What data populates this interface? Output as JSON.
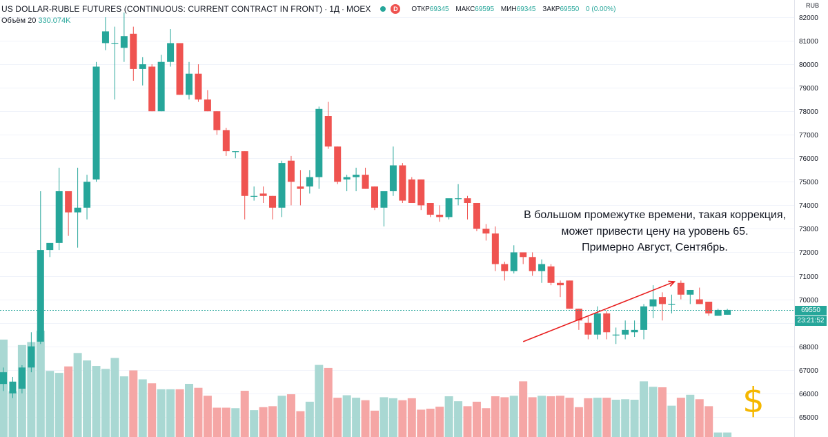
{
  "header": {
    "title": "US DOLLAR-RUBLE FUTURES (CONTINUOUS: CURRENT CONTRACT IN FRONT)",
    "interval": "1Д",
    "exchange": "MOEX",
    "badge": "D",
    "open_label": "ОТКР",
    "open_value": "69345",
    "high_label": "МАКС",
    "high_value": "69595",
    "low_label": "МИН",
    "low_value": "69345",
    "close_label": "ЗАКР",
    "close_value": "69550",
    "change_value": "0 (0.00%)"
  },
  "volume_legend": {
    "label": "Объём 20",
    "value": "330.074K"
  },
  "axis": {
    "currency": "RUB",
    "last_price": "69550",
    "countdown": "23:21:52"
  },
  "annotation": {
    "lines": [
      "В большом промежутке времени, такая коррекция,",
      "может привести цену на уровень 65.",
      "Примерно Август, Сентябрь."
    ]
  },
  "decoration": {
    "dollar_symbol": "$"
  },
  "colors": {
    "up": "#26a69a",
    "down": "#ef5350",
    "vol_up": "#a9d8d3",
    "vol_down": "#f5a6a5",
    "trend": "#e81e1e"
  },
  "chart_data": {
    "type": "candlestick",
    "y_ticks": [
      82000,
      81000,
      80000,
      79000,
      78000,
      77000,
      76000,
      75000,
      74000,
      73000,
      72000,
      71000,
      70000,
      69000,
      68000,
      67000,
      66000,
      65000
    ],
    "last_price": 69550,
    "trend_line": {
      "from": [
        56,
        68200
      ],
      "to": [
        72,
        70750
      ]
    },
    "candles": [
      {
        "o": 66400,
        "h": 67100,
        "l": 66100,
        "c": 66900
      },
      {
        "o": 66000,
        "h": 66700,
        "l": 65800,
        "c": 66500
      },
      {
        "o": 66200,
        "h": 67200,
        "l": 66000,
        "c": 67100
      },
      {
        "o": 67100,
        "h": 68600,
        "l": 66900,
        "c": 68000
      },
      {
        "o": 68200,
        "h": 74600,
        "l": 68100,
        "c": 72100
      },
      {
        "o": 72100,
        "h": 72300,
        "l": 71800,
        "c": 72400
      },
      {
        "o": 72400,
        "h": 75600,
        "l": 72100,
        "c": 74600
      },
      {
        "o": 74600,
        "h": 74600,
        "l": 72700,
        "c": 73700
      },
      {
        "o": 73700,
        "h": 75600,
        "l": 72200,
        "c": 73900
      },
      {
        "o": 73900,
        "h": 75300,
        "l": 73400,
        "c": 75000
      },
      {
        "o": 75100,
        "h": 80100,
        "l": 75000,
        "c": 79900
      },
      {
        "o": 80900,
        "h": 82000,
        "l": 80600,
        "c": 81400
      },
      {
        "o": 80900,
        "h": 81600,
        "l": 78500,
        "c": 80900
      },
      {
        "o": 80700,
        "h": 82200,
        "l": 80100,
        "c": 81200
      },
      {
        "o": 81300,
        "h": 81600,
        "l": 79300,
        "c": 79800
      },
      {
        "o": 79800,
        "h": 80300,
        "l": 79100,
        "c": 80000
      },
      {
        "o": 79900,
        "h": 80000,
        "l": 78000,
        "c": 78000
      },
      {
        "o": 78000,
        "h": 80400,
        "l": 78000,
        "c": 80100
      },
      {
        "o": 80100,
        "h": 81500,
        "l": 79900,
        "c": 80900
      },
      {
        "o": 80900,
        "h": 80900,
        "l": 78700,
        "c": 78700
      },
      {
        "o": 78700,
        "h": 80100,
        "l": 78500,
        "c": 79600
      },
      {
        "o": 79600,
        "h": 80000,
        "l": 78400,
        "c": 78500
      },
      {
        "o": 78500,
        "h": 78900,
        "l": 78000,
        "c": 78000
      },
      {
        "o": 78000,
        "h": 78000,
        "l": 77000,
        "c": 77200
      },
      {
        "o": 77200,
        "h": 77300,
        "l": 76100,
        "c": 76300
      },
      {
        "o": 76300,
        "h": 76300,
        "l": 76000,
        "c": 76300
      },
      {
        "o": 76300,
        "h": 76300,
        "l": 73400,
        "c": 74400
      },
      {
        "o": 74400,
        "h": 74800,
        "l": 74200,
        "c": 74400
      },
      {
        "o": 74500,
        "h": 74800,
        "l": 74100,
        "c": 74400
      },
      {
        "o": 74400,
        "h": 74400,
        "l": 73400,
        "c": 73900
      },
      {
        "o": 73900,
        "h": 75900,
        "l": 73500,
        "c": 75800
      },
      {
        "o": 75900,
        "h": 76100,
        "l": 74000,
        "c": 75000
      },
      {
        "o": 74800,
        "h": 75500,
        "l": 74000,
        "c": 74700
      },
      {
        "o": 74800,
        "h": 75500,
        "l": 74500,
        "c": 75200
      },
      {
        "o": 75200,
        "h": 78200,
        "l": 74700,
        "c": 78100
      },
      {
        "o": 77800,
        "h": 78400,
        "l": 76400,
        "c": 76500
      },
      {
        "o": 76500,
        "h": 76500,
        "l": 74900,
        "c": 75000
      },
      {
        "o": 75100,
        "h": 75300,
        "l": 74600,
        "c": 75200
      },
      {
        "o": 75200,
        "h": 75600,
        "l": 74600,
        "c": 75300
      },
      {
        "o": 75300,
        "h": 75600,
        "l": 74700,
        "c": 74700
      },
      {
        "o": 74800,
        "h": 74800,
        "l": 73800,
        "c": 73900
      },
      {
        "o": 73900,
        "h": 74500,
        "l": 73100,
        "c": 74600
      },
      {
        "o": 74600,
        "h": 76500,
        "l": 74400,
        "c": 75700
      },
      {
        "o": 75700,
        "h": 75800,
        "l": 74100,
        "c": 74200
      },
      {
        "o": 75100,
        "h": 75200,
        "l": 74100,
        "c": 74100
      },
      {
        "o": 75100,
        "h": 75100,
        "l": 73800,
        "c": 74000
      },
      {
        "o": 74100,
        "h": 74100,
        "l": 73500,
        "c": 73600
      },
      {
        "o": 73600,
        "h": 74000,
        "l": 73300,
        "c": 73500
      },
      {
        "o": 73500,
        "h": 74200,
        "l": 73400,
        "c": 74300
      },
      {
        "o": 74300,
        "h": 74900,
        "l": 74000,
        "c": 74300
      },
      {
        "o": 74300,
        "h": 74400,
        "l": 73400,
        "c": 74100
      },
      {
        "o": 74100,
        "h": 74100,
        "l": 72900,
        "c": 73000
      },
      {
        "o": 73000,
        "h": 73200,
        "l": 72500,
        "c": 72800
      },
      {
        "o": 72800,
        "h": 73100,
        "l": 71200,
        "c": 71500
      },
      {
        "o": 71500,
        "h": 71600,
        "l": 70800,
        "c": 71200
      },
      {
        "o": 71200,
        "h": 72300,
        "l": 71100,
        "c": 72000
      },
      {
        "o": 72000,
        "h": 72000,
        "l": 71500,
        "c": 71800
      },
      {
        "o": 71800,
        "h": 72000,
        "l": 71000,
        "c": 71200
      },
      {
        "o": 71200,
        "h": 71700,
        "l": 70700,
        "c": 71500
      },
      {
        "o": 71400,
        "h": 71500,
        "l": 70600,
        "c": 70700
      },
      {
        "o": 70700,
        "h": 70800,
        "l": 70100,
        "c": 70600
      },
      {
        "o": 70800,
        "h": 70800,
        "l": 69600,
        "c": 69600
      },
      {
        "o": 69600,
        "h": 69600,
        "l": 68700,
        "c": 69100
      },
      {
        "o": 69000,
        "h": 69300,
        "l": 68300,
        "c": 68500
      },
      {
        "o": 68500,
        "h": 69700,
        "l": 68300,
        "c": 69400
      },
      {
        "o": 69400,
        "h": 69500,
        "l": 68300,
        "c": 68600
      },
      {
        "o": 68500,
        "h": 68800,
        "l": 68100,
        "c": 68500
      },
      {
        "o": 68500,
        "h": 69100,
        "l": 68300,
        "c": 68700
      },
      {
        "o": 68600,
        "h": 69100,
        "l": 68400,
        "c": 68700
      },
      {
        "o": 68700,
        "h": 69800,
        "l": 68300,
        "c": 69700
      },
      {
        "o": 69700,
        "h": 70600,
        "l": 69200,
        "c": 70000
      },
      {
        "o": 70100,
        "h": 70300,
        "l": 69100,
        "c": 69800
      },
      {
        "o": 69800,
        "h": 70200,
        "l": 69400,
        "c": 69800
      },
      {
        "o": 70700,
        "h": 70800,
        "l": 70000,
        "c": 70200
      },
      {
        "o": 70200,
        "h": 70400,
        "l": 69800,
        "c": 70400
      },
      {
        "o": 70000,
        "h": 70500,
        "l": 69800,
        "c": 69800
      },
      {
        "o": 69900,
        "h": 69900,
        "l": 69300,
        "c": 69400
      },
      {
        "o": 69300,
        "h": 69600,
        "l": 69300,
        "c": 69550
      },
      {
        "o": 69345,
        "h": 69595,
        "l": 69345,
        "c": 69550
      }
    ],
    "volumes": [
      196,
      92,
      185,
      191,
      214,
      133,
      129,
      142,
      169,
      154,
      143,
      137,
      159,
      122,
      134,
      116,
      108,
      96,
      96,
      96,
      107,
      99,
      83,
      59,
      59,
      58,
      93,
      54,
      60,
      62,
      83,
      86,
      52,
      71,
      145,
      139,
      79,
      84,
      79,
      74,
      53,
      80,
      78,
      74,
      78,
      55,
      57,
      61,
      82,
      72,
      62,
      71,
      58,
      82,
      80,
      83,
      112,
      80,
      83,
      82,
      83,
      79,
      60,
      78,
      79,
      79,
      75,
      76,
      75,
      112,
      101,
      100,
      63,
      79,
      85,
      76,
      62,
      9,
      9
    ]
  }
}
